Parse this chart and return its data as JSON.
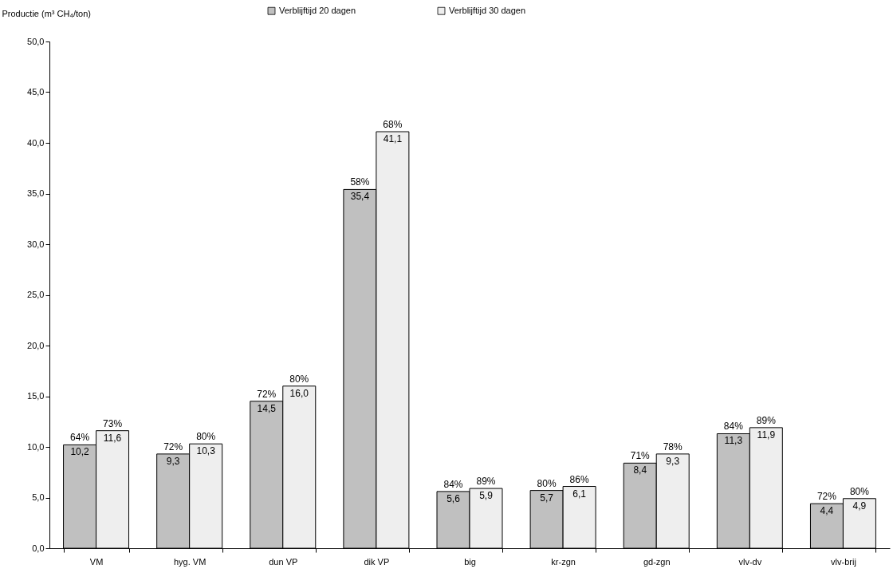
{
  "chart_data": {
    "type": "bar",
    "ylabel": "Productie (m³ CH₄/ton)",
    "categories": [
      "VM",
      "hyg. VM",
      "dun VP",
      "dik VP",
      "big",
      "kr-zgn",
      "gd-zgn",
      "vlv-dv",
      "vlv-brij"
    ],
    "series": [
      {
        "name": "Verblijftijd 20 dagen",
        "color": "#c0c0c0",
        "values": [
          10.2,
          9.3,
          14.5,
          35.4,
          5.6,
          5.7,
          8.4,
          11.3,
          4.4
        ],
        "value_labels": [
          "10,2",
          "9,3",
          "14,5",
          "35,4",
          "5,6",
          "5,7",
          "8,4",
          "11,3",
          "4,4"
        ]
      },
      {
        "name": "Verblijftijd 30 dagen",
        "color": "#eeeeee",
        "values": [
          11.6,
          10.3,
          16.0,
          41.1,
          5.9,
          6.1,
          9.3,
          11.9,
          4.9
        ],
        "value_labels": [
          "11,6",
          "10,3",
          "16,0",
          "41,1",
          "5,9",
          "6,1",
          "9,3",
          "11,9",
          "4,9"
        ]
      }
    ],
    "ylim": [
      0,
      50
    ],
    "yticks": [
      {
        "value": 0,
        "label": "0,0"
      },
      {
        "value": 5,
        "label": "5,0"
      },
      {
        "value": 10,
        "label": "10,0"
      },
      {
        "value": 15,
        "label": "15,0"
      },
      {
        "value": 20,
        "label": "20,0"
      },
      {
        "value": 25,
        "label": "25,0"
      },
      {
        "value": 30,
        "label": "30,0"
      },
      {
        "value": 35,
        "label": "35,0"
      },
      {
        "value": 40,
        "label": "40,0"
      },
      {
        "value": 45,
        "label": "45,0"
      },
      {
        "value": 50,
        "label": "50,0"
      }
    ],
    "annotations": [
      {
        "text": "64%",
        "x": "VM",
        "y": 10.2
      },
      {
        "text": "73%",
        "x": "VM",
        "y": 11.6
      },
      {
        "text": "72%",
        "x": "hyg. VM",
        "y": 9.3
      },
      {
        "text": "80%",
        "x": "hyg. VM",
        "y": 10.3
      },
      {
        "text": "72%",
        "x": "dun VP",
        "y": 14.5
      },
      {
        "text": "80%",
        "x": "dun VP",
        "y": 16.0
      },
      {
        "text": "58%",
        "x": "dik VP",
        "y": 35.4
      },
      {
        "text": "68%",
        "x": "dik VP",
        "y": 41.1
      },
      {
        "text": "84%",
        "x": "big",
        "y": 5.6
      },
      {
        "text": "89%",
        "x": "big",
        "y": 5.9
      },
      {
        "text": "80%",
        "x": "kr-zgn",
        "y": 5.7
      },
      {
        "text": "86%",
        "x": "kr-zgn",
        "y": 6.1
      },
      {
        "text": "71%",
        "x": "gd-zgn",
        "y": 8.4
      },
      {
        "text": "78%",
        "x": "gd-zgn",
        "y": 9.3
      },
      {
        "text": "84%",
        "x": "vlv-dv",
        "y": 11.3
      },
      {
        "text": "89%",
        "x": "vlv-dv",
        "y": 11.9
      },
      {
        "text": "72%",
        "x": "vlv-brij",
        "y": 4.4
      },
      {
        "text": "80%",
        "x": "vlv-brij",
        "y": 4.9
      }
    ],
    "legend": "top",
    "grid": false
  }
}
